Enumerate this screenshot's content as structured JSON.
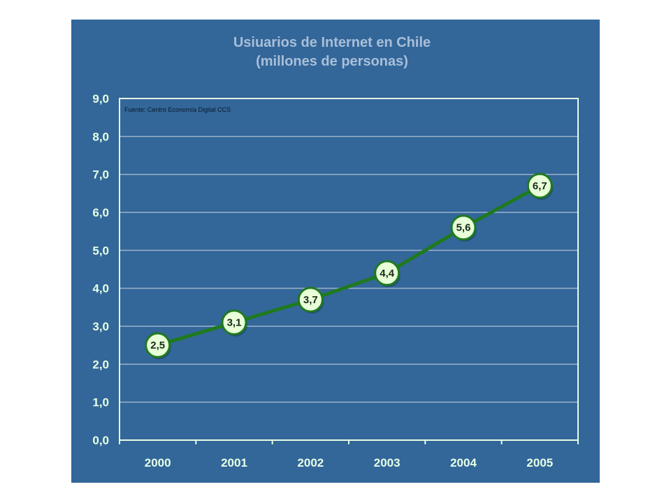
{
  "chart_data": {
    "type": "line",
    "title": "Usiuarios de Internet en Chile",
    "subtitle": "(millones de personas)",
    "annotation": "Fuente: Centro Economía Digital CCS",
    "categories": [
      "2000",
      "2001",
      "2002",
      "2003",
      "2004",
      "2005"
    ],
    "series": [
      {
        "values": [
          2.5,
          3.1,
          3.7,
          4.4,
          5.6,
          6.7
        ],
        "labels": [
          "2,5",
          "3,1",
          "3,7",
          "4,4",
          "5,6",
          "6,7"
        ]
      }
    ],
    "y_ticks": [
      "0,0",
      "1,0",
      "2,0",
      "3,0",
      "4,0",
      "5,0",
      "6,0",
      "7,0",
      "8,0",
      "9,0"
    ],
    "ylim": [
      0,
      9
    ],
    "grid": true,
    "legend": "none"
  },
  "colors": {
    "panel_background": "#336699",
    "title": "#a9bfd8",
    "tick_labels": "#e6ffe6",
    "line": "#1f7a1f",
    "marker_fill": "#e8ffd8",
    "marker_stroke": "#1f7a1f",
    "gridline": "#9db3c9",
    "plot_border": "#e6ffe6"
  }
}
